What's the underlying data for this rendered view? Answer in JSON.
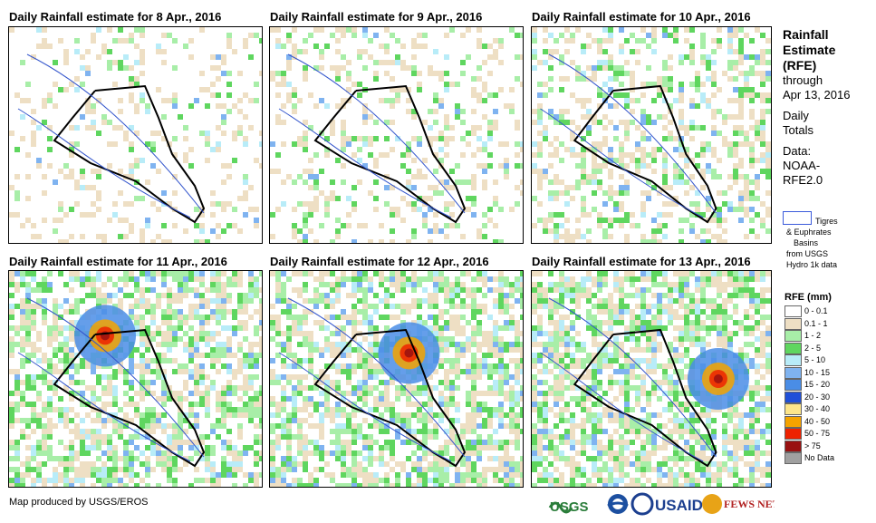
{
  "panels": [
    {
      "title": "Daily Rainfall estimate for 8 Apr., 2016",
      "intensity": 0.15
    },
    {
      "title": "Daily Rainfall estimate for 9 Apr., 2016",
      "intensity": 0.2
    },
    {
      "title": "Daily Rainfall estimate for 10 Apr., 2016",
      "intensity": 0.45
    },
    {
      "title": "Daily Rainfall estimate for 11 Apr., 2016",
      "intensity": 0.75
    },
    {
      "title": "Daily Rainfall estimate for 12 Apr., 2016",
      "intensity": 0.8
    },
    {
      "title": "Daily Rainfall estimate for 13 Apr., 2016",
      "intensity": 0.85
    }
  ],
  "sidebar": {
    "title_lines": [
      "Rainfall",
      "Estimate",
      "(RFE)"
    ],
    "through_lines": [
      "through",
      "Apr 13, 2016"
    ],
    "daily_lines": [
      "Daily",
      "Totals"
    ],
    "data_lines": [
      "Data:",
      "NOAA-",
      "RFE2.0"
    ],
    "basin_lines": [
      "Tigres",
      "& Euphrates",
      "Basins",
      "from USGS",
      "Hydro 1k data"
    ]
  },
  "legend": {
    "title": "RFE (mm)",
    "items": [
      {
        "label": "0 - 0.1",
        "color": "#ffffff"
      },
      {
        "label": "0.1 - 1",
        "color": "#eedfc4"
      },
      {
        "label": "1 - 2",
        "color": "#a8eea8"
      },
      {
        "label": "2 - 5",
        "color": "#5fd65f"
      },
      {
        "label": "5 - 10",
        "color": "#b8ecf8"
      },
      {
        "label": "10 - 15",
        "color": "#7fb3f0"
      },
      {
        "label": "15 - 20",
        "color": "#4a8de6"
      },
      {
        "label": "20 - 30",
        "color": "#1f4fd8"
      },
      {
        "label": "30 - 40",
        "color": "#fde58a"
      },
      {
        "label": "40 - 50",
        "color": "#f5a300"
      },
      {
        "label": "50 - 75",
        "color": "#ee2200"
      },
      {
        "label": "> 75",
        "color": "#991111"
      },
      {
        "label": "No Data",
        "color": "#a0a0a0"
      }
    ]
  },
  "footer": {
    "credit": "Map produced by USGS/EROS",
    "logos": [
      "USGS",
      "NOAA",
      "USAID",
      "FEWS NET"
    ]
  },
  "colors": {
    "river": "#3355cc",
    "border": "#000000",
    "admin": "#999999"
  }
}
